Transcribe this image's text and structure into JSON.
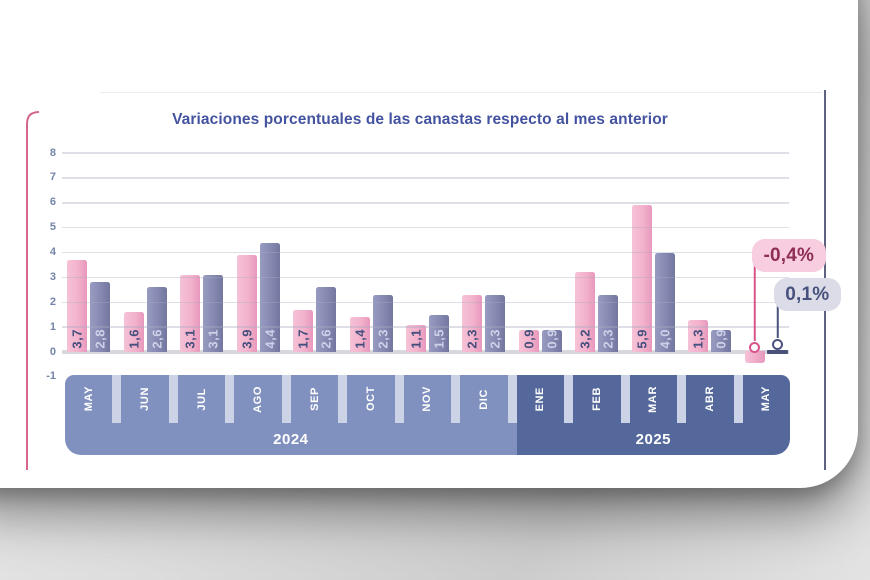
{
  "title": "Variaciones porcentuales de las canastas respecto al mes anterior",
  "chart_data": {
    "type": "bar",
    "categories": [
      "MAY",
      "JUN",
      "JUL",
      "AGO",
      "SEP",
      "OCT",
      "NOV",
      "DIC",
      "ENE",
      "FEB",
      "MAR",
      "ABR",
      "MAY"
    ],
    "year_groups": [
      {
        "label": "2024",
        "months": 8
      },
      {
        "label": "2025",
        "months": 5
      }
    ],
    "series": [
      {
        "name": "canasta-serie-rosa",
        "values": [
          3.7,
          1.6,
          3.1,
          3.9,
          1.7,
          1.4,
          1.1,
          2.3,
          0.9,
          3.2,
          5.9,
          1.3,
          -0.4
        ]
      },
      {
        "name": "canasta-serie-violeta",
        "values": [
          2.8,
          2.6,
          3.1,
          4.4,
          2.6,
          2.3,
          1.5,
          2.3,
          0.9,
          2.3,
          4.0,
          0.9,
          0.1
        ]
      }
    ],
    "ylim": [
      -1,
      8
    ],
    "yticks": [
      8,
      7,
      6,
      5,
      4,
      3,
      2,
      1,
      0,
      -1
    ],
    "grid": true,
    "legend": "none",
    "callouts": [
      {
        "series": 0,
        "label": "-0,4%"
      },
      {
        "series": 1,
        "label": "0,1%"
      }
    ]
  },
  "colors": {
    "title": "#44539f",
    "bar_pink": "#f2b2cc",
    "bar_purple": "#8588b1",
    "band_2024": "#8191bf",
    "band_2025": "#55689b",
    "callout_pink_bg": "#f7cddf",
    "callout_pink_text": "#8e2d55",
    "callout_gray_bg": "#dbdce7",
    "callout_gray_text": "#47517d",
    "left_rule": "#d5688a",
    "right_rule": "#5c6280"
  }
}
